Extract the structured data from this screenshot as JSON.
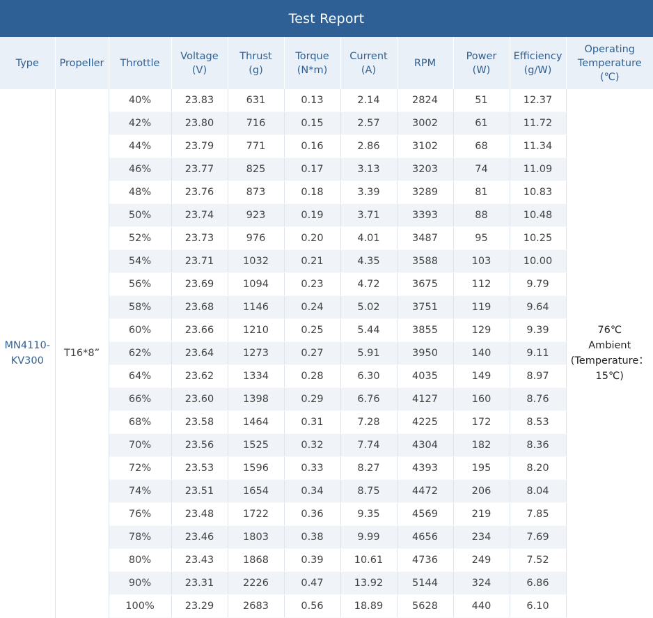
{
  "title": "Test Report",
  "headers": [
    {
      "key": "type",
      "lines": [
        "Type"
      ]
    },
    {
      "key": "propeller",
      "lines": [
        "Propeller"
      ]
    },
    {
      "key": "throttle",
      "lines": [
        "Throttle"
      ]
    },
    {
      "key": "voltage",
      "lines": [
        "Voltage",
        "(V)"
      ]
    },
    {
      "key": "thrust",
      "lines": [
        "Thrust",
        "(g)"
      ]
    },
    {
      "key": "torque",
      "lines": [
        "Torque",
        "(N*m)"
      ]
    },
    {
      "key": "current",
      "lines": [
        "Current",
        "(A)"
      ]
    },
    {
      "key": "rpm",
      "lines": [
        "RPM"
      ]
    },
    {
      "key": "power",
      "lines": [
        "Power",
        "(W)"
      ]
    },
    {
      "key": "efficiency",
      "lines": [
        "Efficiency",
        "(g/W)"
      ]
    },
    {
      "key": "operating_temperature",
      "lines": [
        "Operating",
        "Temperature",
        "(℃)"
      ]
    }
  ],
  "type_lines": [
    "MN4110-",
    "KV300"
  ],
  "propeller": "T16*8”",
  "temperature_lines": [
    "76℃",
    "Ambient",
    "(Temperature：",
    "15℃)"
  ],
  "rows": [
    [
      "40%",
      "23.83",
      "631",
      "0.13",
      "2.14",
      "2824",
      "51",
      "12.37"
    ],
    [
      "42%",
      "23.80",
      "716",
      "0.15",
      "2.57",
      "3002",
      "61",
      "11.72"
    ],
    [
      "44%",
      "23.79",
      "771",
      "0.16",
      "2.86",
      "3102",
      "68",
      "11.34"
    ],
    [
      "46%",
      "23.77",
      "825",
      "0.17",
      "3.13",
      "3203",
      "74",
      "11.09"
    ],
    [
      "48%",
      "23.76",
      "873",
      "0.18",
      "3.39",
      "3289",
      "81",
      "10.83"
    ],
    [
      "50%",
      "23.74",
      "923",
      "0.19",
      "3.71",
      "3393",
      "88",
      "10.48"
    ],
    [
      "52%",
      "23.73",
      "976",
      "0.20",
      "4.01",
      "3487",
      "95",
      "10.25"
    ],
    [
      "54%",
      "23.71",
      "1032",
      "0.21",
      "4.35",
      "3588",
      "103",
      "10.00"
    ],
    [
      "56%",
      "23.69",
      "1094",
      "0.23",
      "4.72",
      "3675",
      "112",
      "9.79"
    ],
    [
      "58%",
      "23.68",
      "1146",
      "0.24",
      "5.02",
      "3751",
      "119",
      "9.64"
    ],
    [
      "60%",
      "23.66",
      "1210",
      "0.25",
      "5.44",
      "3855",
      "129",
      "9.39"
    ],
    [
      "62%",
      "23.64",
      "1273",
      "0.27",
      "5.91",
      "3950",
      "140",
      "9.11"
    ],
    [
      "64%",
      "23.62",
      "1334",
      "0.28",
      "6.30",
      "4035",
      "149",
      "8.97"
    ],
    [
      "66%",
      "23.60",
      "1398",
      "0.29",
      "6.76",
      "4127",
      "160",
      "8.76"
    ],
    [
      "68%",
      "23.58",
      "1464",
      "0.31",
      "7.28",
      "4225",
      "172",
      "8.53"
    ],
    [
      "70%",
      "23.56",
      "1525",
      "0.32",
      "7.74",
      "4304",
      "182",
      "8.36"
    ],
    [
      "72%",
      "23.53",
      "1596",
      "0.33",
      "8.27",
      "4393",
      "195",
      "8.20"
    ],
    [
      "74%",
      "23.51",
      "1654",
      "0.34",
      "8.75",
      "4472",
      "206",
      "8.04"
    ],
    [
      "76%",
      "23.48",
      "1722",
      "0.36",
      "9.35",
      "4569",
      "219",
      "7.85"
    ],
    [
      "78%",
      "23.46",
      "1803",
      "0.38",
      "9.99",
      "4656",
      "234",
      "7.69"
    ],
    [
      "80%",
      "23.43",
      "1868",
      "0.39",
      "10.61",
      "4736",
      "249",
      "7.52"
    ],
    [
      "90%",
      "23.31",
      "2226",
      "0.47",
      "13.92",
      "5144",
      "324",
      "6.86"
    ],
    [
      "100%",
      "23.29",
      "2683",
      "0.56",
      "18.89",
      "5628",
      "440",
      "6.10"
    ]
  ],
  "colors": {
    "title_bg": "#2e6096",
    "header_bg": "#eaf0f7",
    "header_text": "#2f5f91",
    "stripe": "#f0f4f9"
  }
}
